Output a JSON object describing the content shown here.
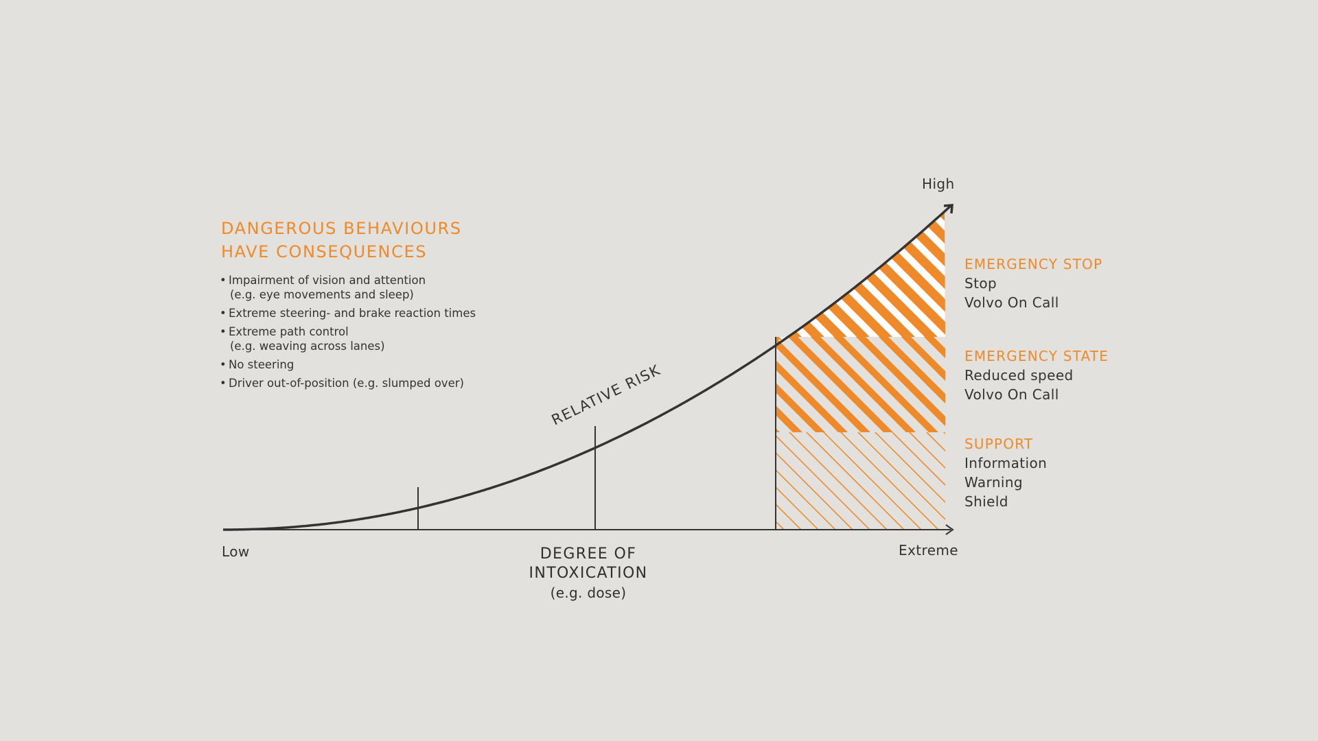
{
  "heading": {
    "line1": "DANGEROUS BEHAVIOURS",
    "line2": "HAVE CONSEQUENCES"
  },
  "behaviours": [
    {
      "text": "Impairment of vision and attention",
      "sub": "(e.g. eye movements and sleep)"
    },
    {
      "text": "Extreme steering- and brake reaction times",
      "sub": ""
    },
    {
      "text": "Extreme path control",
      "sub": "(e.g. weaving across lanes)"
    },
    {
      "text": "No steering",
      "sub": ""
    },
    {
      "text": "Driver out-of-position (e.g. slumped over)",
      "sub": ""
    }
  ],
  "bullet": "•",
  "curve_label": "RELATIVE RISK",
  "y_axis": {
    "high": "High"
  },
  "x_axis": {
    "low": "Low",
    "extreme": "Extreme",
    "title": "DEGREE OF INTOXICATION",
    "subtitle": "(e.g. dose)"
  },
  "levels": {
    "stop": {
      "title": "EMERGENCY STOP",
      "lines": [
        "Stop",
        "Volvo On Call"
      ]
    },
    "state": {
      "title": "EMERGENCY STATE",
      "lines": [
        "Reduced speed",
        "Volvo On Call"
      ]
    },
    "support": {
      "title": "SUPPORT",
      "lines": [
        "Information",
        "Warning",
        "Shield"
      ]
    }
  },
  "colors": {
    "background": "#e2e1dd",
    "accent": "#ef8a2a",
    "ink": "#333333"
  }
}
